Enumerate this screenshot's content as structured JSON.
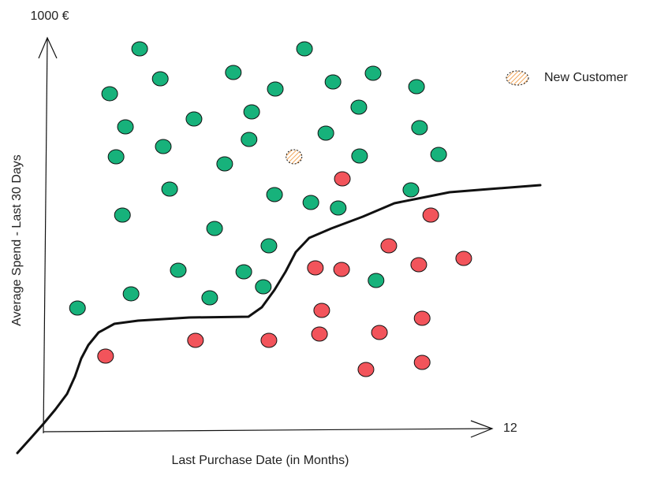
{
  "chart_data": {
    "type": "scatter",
    "x_label": "Last Purchase Date (in Months)",
    "y_label": "Average Spend - Last 30 Days",
    "xlim": [
      0,
      12
    ],
    "ylim": [
      0,
      1000
    ],
    "xticks": [
      12
    ],
    "yticks": [
      {
        "value": 1000,
        "label": "1000 €"
      }
    ],
    "series": [
      {
        "color": "#17b27b",
        "x": [
          2.57,
          6.97,
          3.12,
          5.07,
          6.19,
          7.73,
          8.8,
          9.96,
          1.77,
          5.56,
          8.42,
          2.19,
          4.02,
          7.54,
          10.04,
          5.49,
          1.94,
          3.2,
          4.84,
          8.44,
          10.55,
          3.37,
          6.17,
          7.14,
          7.87,
          9.81,
          2.11,
          4.57,
          6.02,
          3.6,
          5.35,
          5.87,
          8.88,
          2.34,
          4.44,
          0.91
        ],
        "values": [
          972,
          972,
          896,
          912,
          870,
          888,
          910,
          876,
          858,
          812,
          824,
          774,
          794,
          758,
          772,
          742,
          698,
          724,
          680,
          700,
          704,
          616,
          602,
          582,
          568,
          614,
          550,
          516,
          472,
          410,
          406,
          368,
          384,
          350,
          340,
          314
        ]
      },
      {
        "color": "#f2545b",
        "x": [
          7.98,
          10.34,
          9.22,
          7.26,
          7.96,
          10.02,
          11.22,
          7.43,
          10.11,
          4.06,
          6.02,
          7.37,
          8.97,
          1.66,
          8.61,
          10.11
        ],
        "values": [
          642,
          550,
          472,
          416,
          412,
          424,
          440,
          308,
          288,
          232,
          232,
          248,
          252,
          192,
          158,
          176
        ]
      },
      {
        "name": "New Customer",
        "color": "#f2a65a",
        "hatched": true,
        "x": [
          6.69
        ],
        "values": [
          698
        ]
      }
    ]
  }
}
